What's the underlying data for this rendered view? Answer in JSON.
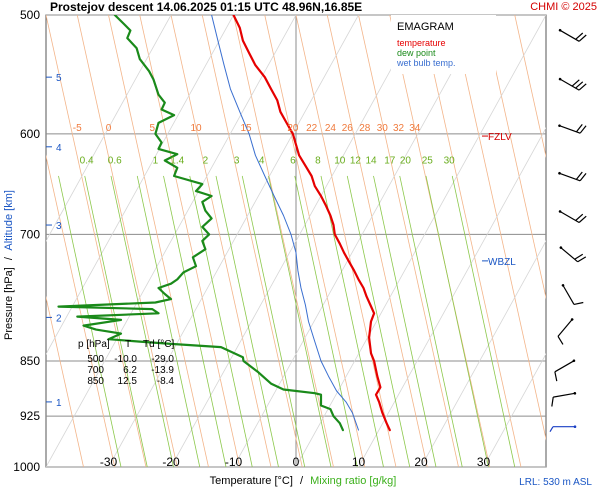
{
  "chart_data": {
    "type": "line",
    "title": "Prostejov  descent   14.06.2025 01:15 UTC  48.96N,16.85E",
    "copyright": "CHMI © 2025",
    "legend": {
      "heading": "EMAGRAM",
      "placement": "top-right",
      "entries": [
        {
          "label": "temperature",
          "color": "#e60000"
        },
        {
          "label": "dew point",
          "color": "#1a8a1a"
        },
        {
          "label": "wet bulb temp.",
          "color": "#3a6fd0"
        }
      ]
    },
    "axes": {
      "ylabel_left_a": "Pressure [hPa]",
      "ylabel_left_sep": "/",
      "ylabel_left_b": "Altitude [km]",
      "xlabel_a": "Temperature [°C]",
      "xlabel_sep": "/",
      "xlabel_b": "Mixing ratio [g/kg]",
      "x_ticks": [
        "-30",
        "-20",
        "-10",
        "0",
        "10",
        "20",
        "30"
      ],
      "x_tick_values": [
        -30,
        -20,
        -10,
        0,
        10,
        20,
        30
      ],
      "xlim": [
        -40,
        40
      ],
      "ylim": [
        1000,
        500
      ],
      "y_scale": "log",
      "y_ticks": [
        "500",
        "600",
        "700",
        "850",
        "925",
        "1000"
      ],
      "y_tick_values": [
        500,
        600,
        700,
        850,
        925,
        1000
      ],
      "altitude_ticks": [
        "1",
        "2",
        "3",
        "4",
        "5"
      ],
      "altitude_pressures": [
        905,
        795,
        690,
        612,
        550
      ]
    },
    "isotherm_labels": [
      "-5",
      "0",
      "5",
      "10",
      "15",
      "20",
      "22",
      "24",
      "26",
      "28",
      "30",
      "32",
      "34"
    ],
    "isotherm_values": [
      -5,
      0,
      5,
      10,
      15,
      20,
      22,
      24,
      26,
      28,
      30,
      32,
      34
    ],
    "mixing_ratio_labels": [
      "0.4",
      "0.6",
      "1",
      "1.4",
      "2",
      "3",
      "4",
      "6",
      "8",
      "10",
      "12",
      "14",
      "17",
      "20",
      "25",
      "30"
    ],
    "mixing_ratio_values": [
      0.4,
      0.6,
      1,
      1.4,
      2,
      3,
      4,
      6,
      8,
      10,
      12,
      14,
      17,
      20,
      25,
      30
    ],
    "levels": [
      {
        "label": "FZLV",
        "pressure": 602
      },
      {
        "label": "WBZL",
        "pressure": 729
      }
    ],
    "table": {
      "headers": [
        "p [hPa]",
        "T",
        "Td [°C]"
      ],
      "rows": [
        [
          "500",
          "-10.0",
          "-29.0"
        ],
        [
          "700",
          "6.2",
          "-13.9"
        ],
        [
          "850",
          "12.5",
          "-8.4"
        ]
      ]
    },
    "lrl_note": "LRL: 530 m ASL",
    "series": [
      {
        "name": "temperature",
        "color": "#e60000",
        "points": [
          [
            -10.0,
            500
          ],
          [
            -9.0,
            510
          ],
          [
            -8.5,
            520
          ],
          [
            -7.5,
            530
          ],
          [
            -6.5,
            540
          ],
          [
            -5.0,
            550
          ],
          [
            -4.0,
            560
          ],
          [
            -3.0,
            570
          ],
          [
            -2.5,
            580
          ],
          [
            -1.5,
            590
          ],
          [
            -0.5,
            600
          ],
          [
            0.0,
            610
          ],
          [
            0.5,
            620
          ],
          [
            1.5,
            630
          ],
          [
            2.5,
            640
          ],
          [
            3.0,
            650
          ],
          [
            4.0,
            660
          ],
          [
            4.8,
            670
          ],
          [
            5.5,
            680
          ],
          [
            6.0,
            690
          ],
          [
            6.2,
            700
          ],
          [
            7.0,
            710
          ],
          [
            7.7,
            720
          ],
          [
            8.5,
            730
          ],
          [
            9.3,
            740
          ],
          [
            10.0,
            750
          ],
          [
            10.8,
            760
          ],
          [
            11.3,
            770
          ],
          [
            11.9,
            780
          ],
          [
            12.5,
            790
          ],
          [
            12.0,
            800
          ],
          [
            11.7,
            820
          ],
          [
            12.0,
            840
          ],
          [
            12.5,
            850
          ],
          [
            13.0,
            870
          ],
          [
            13.5,
            885
          ],
          [
            12.8,
            895
          ],
          [
            13.3,
            905
          ],
          [
            13.8,
            920
          ],
          [
            14.5,
            935
          ],
          [
            15.0,
            945
          ]
        ]
      },
      {
        "name": "dew point",
        "color": "#1a8a1a",
        "points": [
          [
            -29.0,
            500
          ],
          [
            -27.5,
            507
          ],
          [
            -26.5,
            512
          ],
          [
            -27.0,
            518
          ],
          [
            -25.5,
            526
          ],
          [
            -25.0,
            535
          ],
          [
            -23.5,
            545
          ],
          [
            -22.8,
            552
          ],
          [
            -22.0,
            565
          ],
          [
            -21.0,
            572
          ],
          [
            -21.5,
            578
          ],
          [
            -19.5,
            583
          ],
          [
            -22.0,
            590
          ],
          [
            -22.5,
            600
          ],
          [
            -21.5,
            608
          ],
          [
            -22.0,
            614
          ],
          [
            -19.0,
            619
          ],
          [
            -21.0,
            625
          ],
          [
            -19.0,
            632
          ],
          [
            -19.5,
            640
          ],
          [
            -15.0,
            648
          ],
          [
            -16.0,
            655
          ],
          [
            -13.5,
            660
          ],
          [
            -15.0,
            666
          ],
          [
            -14.5,
            675
          ],
          [
            -13.5,
            683
          ],
          [
            -15.0,
            692
          ],
          [
            -13.9,
            700
          ],
          [
            -15.0,
            707
          ],
          [
            -14.5,
            716
          ],
          [
            -16.5,
            725
          ],
          [
            -16.0,
            735
          ],
          [
            -18.0,
            742
          ],
          [
            -19.0,
            750
          ],
          [
            -20.0,
            755
          ],
          [
            -22.0,
            760
          ],
          [
            -21.0,
            767
          ],
          [
            -20.0,
            773
          ],
          [
            -22.5,
            777
          ],
          [
            -38.0,
            782
          ],
          [
            -23.0,
            785
          ],
          [
            -22.0,
            790
          ],
          [
            -35.0,
            794
          ],
          [
            -28.0,
            798
          ],
          [
            -34.0,
            805
          ],
          [
            -32.0,
            810
          ],
          [
            -28.0,
            815
          ],
          [
            -30.0,
            822
          ],
          [
            -25.0,
            825
          ],
          [
            -20.0,
            828
          ],
          [
            -12.0,
            832
          ],
          [
            -8.5,
            845
          ],
          [
            -8.4,
            850
          ],
          [
            -6.0,
            865
          ],
          [
            -4.0,
            880
          ],
          [
            -2.0,
            888
          ],
          [
            3.0,
            893
          ],
          [
            4.0,
            895
          ],
          [
            4.0,
            910
          ],
          [
            5.5,
            915
          ],
          [
            6.0,
            925
          ],
          [
            7.0,
            935
          ],
          [
            7.5,
            945
          ]
        ]
      },
      {
        "name": "wet bulb temp.",
        "color": "#3a6fd0",
        "points": [
          [
            -13.5,
            500
          ],
          [
            -12.5,
            520
          ],
          [
            -11.5,
            540
          ],
          [
            -10.5,
            560
          ],
          [
            -9.0,
            580
          ],
          [
            -7.5,
            600
          ],
          [
            -6.5,
            620
          ],
          [
            -5.0,
            640
          ],
          [
            -3.5,
            660
          ],
          [
            -2.0,
            680
          ],
          [
            -0.8,
            700
          ],
          [
            0.0,
            720
          ],
          [
            0.3,
            740
          ],
          [
            0.8,
            760
          ],
          [
            1.5,
            780
          ],
          [
            2.0,
            800
          ],
          [
            3.0,
            825
          ],
          [
            4.0,
            850
          ],
          [
            5.2,
            870
          ],
          [
            6.5,
            890
          ],
          [
            8.0,
            905
          ],
          [
            9.0,
            920
          ],
          [
            10.0,
            945
          ]
        ]
      }
    ],
    "wind_barbs": [
      {
        "pressure": 515,
        "direction": 300,
        "speed": 20
      },
      {
        "pressure": 555,
        "direction": 300,
        "speed": 25
      },
      {
        "pressure": 595,
        "direction": 290,
        "speed": 20
      },
      {
        "pressure": 640,
        "direction": 290,
        "speed": 15
      },
      {
        "pressure": 680,
        "direction": 300,
        "speed": 15
      },
      {
        "pressure": 720,
        "direction": 310,
        "speed": 15
      },
      {
        "pressure": 765,
        "direction": 330,
        "speed": 10
      },
      {
        "pressure": 805,
        "direction": 40,
        "speed": 10
      },
      {
        "pressure": 855,
        "direction": 60,
        "speed": 10
      },
      {
        "pressure": 895,
        "direction": 80,
        "speed": 10
      },
      {
        "pressure": 940,
        "direction": 90,
        "speed": 5
      }
    ]
  }
}
